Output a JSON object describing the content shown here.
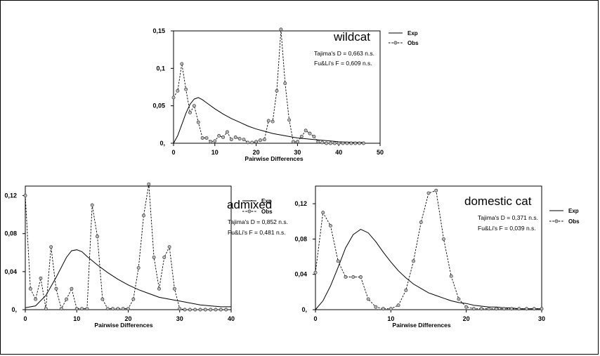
{
  "chart_data": [
    {
      "type": "line",
      "title": "wildcat",
      "xlabel": "Pairwise Differences",
      "ylabel": "",
      "xlim": [
        0,
        50
      ],
      "ylim": [
        0,
        0.15
      ],
      "xticks": [
        0,
        10,
        20,
        30,
        40,
        50
      ],
      "yticks": [
        0,
        0.05,
        0.1,
        0.15
      ],
      "ytick_labels": [
        "0,",
        "0,05",
        "0,1",
        "0,15"
      ],
      "stats": [
        "Tajima's D = 0,663 n.s.",
        "Fu&Li's F = 0,609 n.s."
      ],
      "legend": [
        "Exp",
        "Obs"
      ],
      "series": [
        {
          "name": "Exp",
          "style": "solid",
          "x": [
            0,
            1,
            2,
            3,
            4,
            5,
            6,
            7,
            8,
            10,
            12,
            14,
            16,
            18,
            20,
            22,
            24,
            26,
            28,
            30,
            32,
            34,
            36,
            38,
            40,
            42,
            44,
            46
          ],
          "y": [
            0,
            0.01,
            0.025,
            0.04,
            0.052,
            0.059,
            0.061,
            0.058,
            0.054,
            0.046,
            0.039,
            0.033,
            0.028,
            0.023,
            0.019,
            0.016,
            0.013,
            0.011,
            0.009,
            0.007,
            0.006,
            0.005,
            0.004,
            0.003,
            0.002,
            0.0015,
            0.001,
            0.001
          ]
        },
        {
          "name": "Obs",
          "style": "dashed-circle",
          "x": [
            0,
            1,
            2,
            3,
            4,
            5,
            6,
            7,
            8,
            9,
            10,
            11,
            12,
            13,
            14,
            15,
            16,
            17,
            18,
            19,
            20,
            21,
            22,
            23,
            24,
            25,
            26,
            27,
            28,
            29,
            30,
            31,
            32,
            33,
            34,
            35,
            36,
            37,
            38,
            39,
            40,
            41,
            42,
            43,
            44,
            45,
            46
          ],
          "y": [
            0.061,
            0.07,
            0.106,
            0.072,
            0.041,
            0.05,
            0.028,
            0.007,
            0.007,
            0.002,
            0.003,
            0.01,
            0.008,
            0.015,
            0.005,
            0.008,
            0.006,
            0.005,
            0.001,
            0.001,
            0.002,
            0.004,
            0.005,
            0.03,
            0.029,
            0.07,
            0.152,
            0.08,
            0.031,
            0.002,
            0.002,
            0.009,
            0.017,
            0.013,
            0.009,
            0.002,
            0.001,
            0,
            0,
            0,
            0,
            0,
            0,
            0,
            0,
            0,
            0
          ]
        }
      ]
    },
    {
      "type": "line",
      "title": "admixed",
      "xlabel": "Pairwise Differences",
      "ylabel": "",
      "xlim": [
        0,
        40
      ],
      "ylim": [
        0,
        0.13
      ],
      "xticks": [
        0,
        10,
        20,
        30,
        40
      ],
      "yticks": [
        0,
        0.04,
        0.08,
        0.12
      ],
      "ytick_labels": [
        "0,",
        "0,04",
        "0,08",
        "0,12"
      ],
      "stats": [
        "Tajima's D = 0,852 n.s.",
        "Fu&Li's F = 0,481 n.s."
      ],
      "legend": [
        "Exp",
        "Obs"
      ],
      "series": [
        {
          "name": "Exp",
          "style": "solid",
          "x": [
            0,
            2,
            4,
            6,
            8,
            9,
            10,
            11,
            12,
            14,
            16,
            18,
            20,
            22,
            24,
            26,
            28,
            30,
            32,
            34,
            36,
            38,
            40
          ],
          "y": [
            0.002,
            0.004,
            0.015,
            0.034,
            0.055,
            0.062,
            0.063,
            0.061,
            0.056,
            0.047,
            0.039,
            0.032,
            0.026,
            0.021,
            0.017,
            0.013,
            0.011,
            0.009,
            0.007,
            0.005,
            0.004,
            0.003,
            0.003
          ]
        },
        {
          "name": "Obs",
          "style": "dashed-circle",
          "x": [
            0,
            1,
            2,
            3,
            4,
            5,
            6,
            7,
            8,
            9,
            10,
            11,
            12,
            13,
            14,
            15,
            16,
            17,
            18,
            19,
            20,
            21,
            22,
            23,
            24,
            25,
            26,
            27,
            28,
            29,
            30,
            31,
            32,
            33,
            34,
            35,
            36,
            37,
            38,
            39
          ],
          "y": [
            0.12,
            0.022,
            0.011,
            0.033,
            0.001,
            0.066,
            0.022,
            0.001,
            0.011,
            0.022,
            0.001,
            0.001,
            0.001,
            0.11,
            0.077,
            0.011,
            0.001,
            0.001,
            0.001,
            0.001,
            0.001,
            0.011,
            0.044,
            0.099,
            0.132,
            0.055,
            0.022,
            0.055,
            0.066,
            0.022,
            0.001,
            0,
            0,
            0,
            0,
            0,
            0,
            0,
            0,
            0
          ]
        }
      ]
    },
    {
      "type": "line",
      "title": "domestic cat",
      "xlabel": "Pairwise Differences",
      "ylabel": "",
      "xlim": [
        0,
        30
      ],
      "ylim": [
        0,
        0.14
      ],
      "xticks": [
        0,
        10,
        20,
        30
      ],
      "yticks": [
        0,
        0.04,
        0.08,
        0.12
      ],
      "ytick_labels": [
        "0,",
        "0,04",
        "0,08",
        "0,12"
      ],
      "stats": [
        "Tajima's D = 0,371 n.s.",
        "Fu&Li's F = 0,039 n.s."
      ],
      "legend": [
        "Exp",
        "Obs"
      ],
      "series": [
        {
          "name": "Exp",
          "style": "solid",
          "x": [
            0,
            1,
            2,
            3,
            4,
            5,
            6,
            7,
            8,
            9,
            10,
            11,
            12,
            13,
            14,
            15,
            16,
            17,
            18,
            19,
            20,
            21,
            22,
            23,
            24,
            25,
            26,
            27,
            28,
            29,
            30
          ],
          "y": [
            0,
            0.01,
            0.027,
            0.048,
            0.07,
            0.085,
            0.091,
            0.087,
            0.077,
            0.065,
            0.054,
            0.044,
            0.036,
            0.029,
            0.024,
            0.019,
            0.016,
            0.013,
            0.01,
            0.008,
            0.007,
            0.005,
            0.004,
            0.003,
            0.003,
            0.002,
            0.002,
            0.001,
            0.001,
            0.001,
            0.001
          ]
        },
        {
          "name": "Obs",
          "style": "dashed-circle",
          "x": [
            0,
            1,
            2,
            3,
            4,
            5,
            6,
            7,
            8,
            9,
            10,
            11,
            12,
            13,
            14,
            15,
            16,
            17,
            18,
            19,
            20,
            21,
            22,
            23,
            24,
            25,
            26,
            27,
            28,
            29,
            30
          ],
          "y": [
            0.042,
            0.11,
            0.095,
            0.055,
            0.037,
            0.037,
            0.037,
            0.012,
            0.003,
            0.001,
            0.001,
            0.005,
            0.022,
            0.055,
            0.099,
            0.132,
            0.135,
            0.08,
            0.038,
            0.012,
            0.003,
            0.001,
            0.001,
            0.001,
            0.001,
            0.001,
            0.001,
            0.001,
            0.001,
            0.001,
            0.001
          ]
        }
      ]
    }
  ]
}
